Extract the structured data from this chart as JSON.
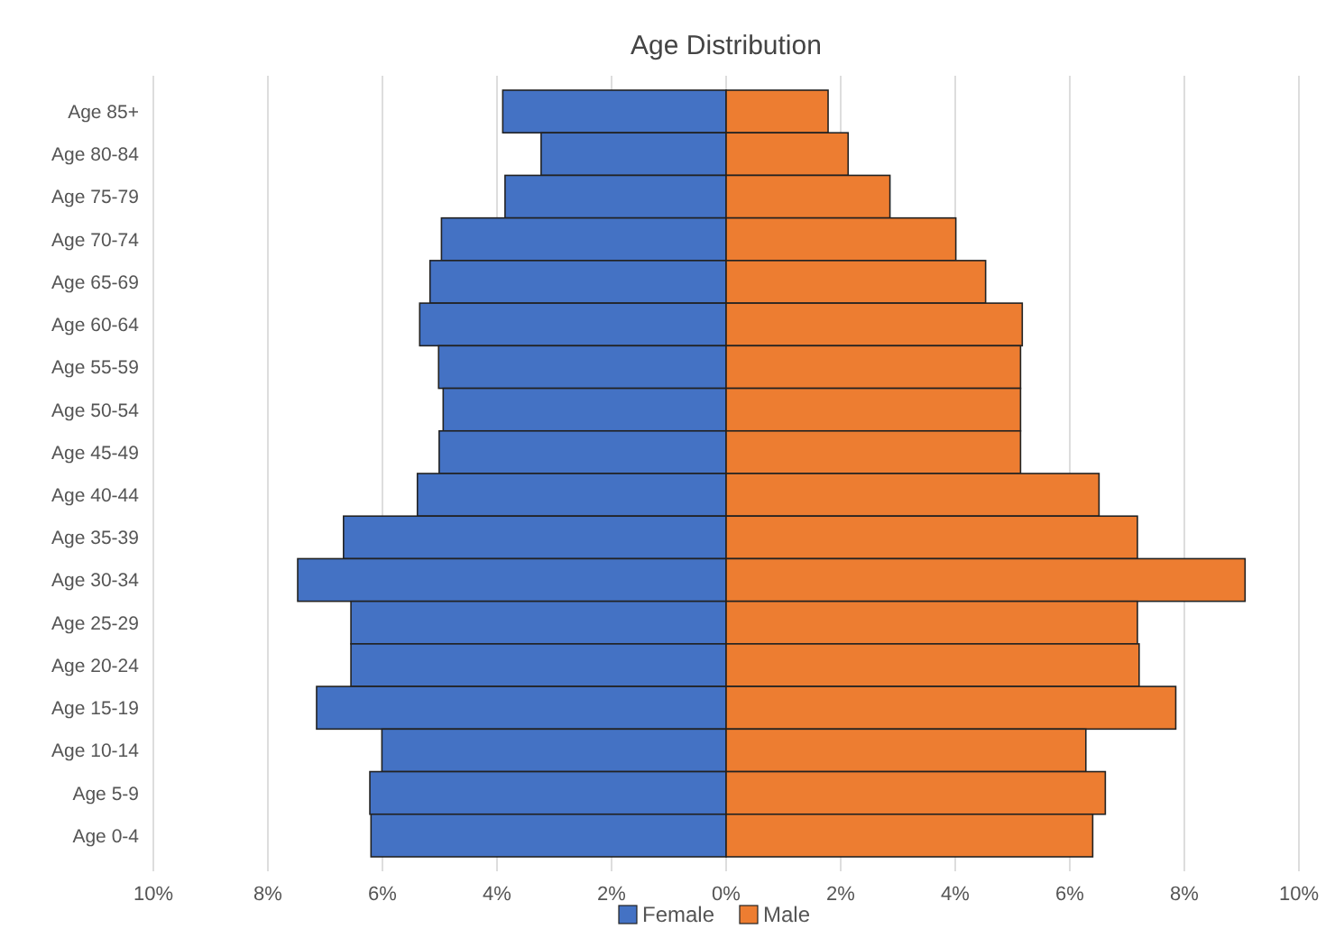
{
  "chart_data": {
    "type": "bar",
    "title": "Age Distribution",
    "orientation": "horizontal",
    "stacked": true,
    "categories": [
      "Age 85+",
      "Age 80-84",
      "Age 75-79",
      "Age 70-74",
      "Age 65-69",
      "Age 60-64",
      "Age 55-59",
      "Age 50-54",
      "Age 45-49",
      "Age 40-44",
      "Age 35-39",
      "Age 30-34",
      "Age 25-29",
      "Age 20-24",
      "Age 15-19",
      "Age 10-14",
      "Age 5-9",
      "Age 0-4"
    ],
    "series": [
      {
        "name": "Female",
        "color": "#4472c4",
        "values": [
          -3.9,
          -3.23,
          -3.86,
          -4.97,
          -5.17,
          -5.35,
          -5.02,
          -4.94,
          -5.01,
          -5.39,
          -6.68,
          -7.48,
          -6.55,
          -6.55,
          -7.15,
          -6.01,
          -6.22,
          -6.2
        ]
      },
      {
        "name": "Male",
        "color": "#ed7d31",
        "values": [
          1.78,
          2.13,
          2.86,
          4.01,
          4.53,
          5.17,
          5.14,
          5.14,
          5.14,
          6.51,
          7.18,
          9.06,
          7.18,
          7.21,
          7.85,
          6.28,
          6.62,
          6.4
        ]
      }
    ],
    "xlim": [
      -10,
      10
    ],
    "xticks": [
      {
        "value": -10,
        "label": "10%"
      },
      {
        "value": -8,
        "label": "8%"
      },
      {
        "value": -6,
        "label": "6%"
      },
      {
        "value": -4,
        "label": "4%"
      },
      {
        "value": -2,
        "label": "2%"
      },
      {
        "value": 0,
        "label": "0%"
      },
      {
        "value": 2,
        "label": "2%"
      },
      {
        "value": 4,
        "label": "4%"
      },
      {
        "value": 6,
        "label": "6%"
      },
      {
        "value": 8,
        "label": "8%"
      },
      {
        "value": 10,
        "label": "10%"
      }
    ],
    "grid": "x",
    "legend": "bottom"
  }
}
